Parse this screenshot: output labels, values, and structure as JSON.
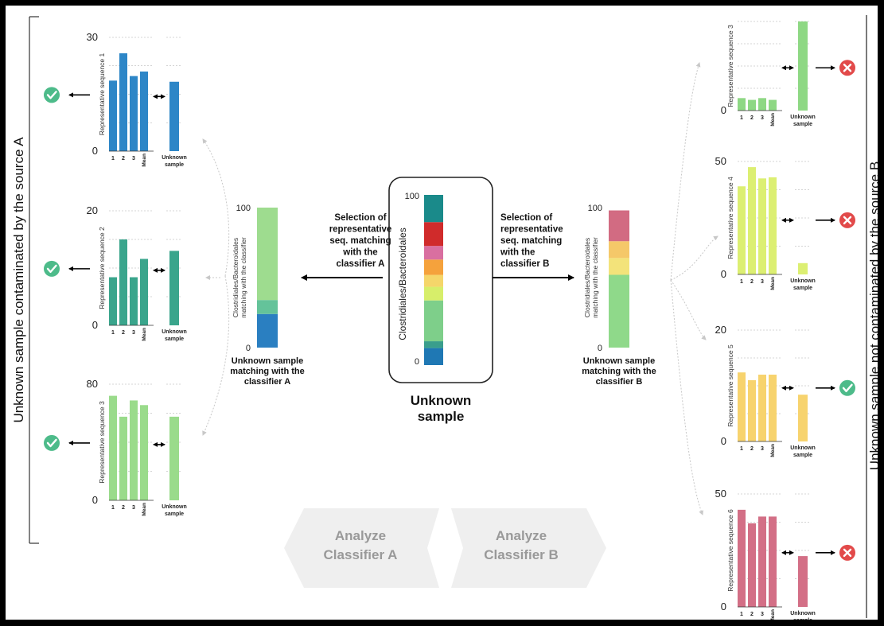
{
  "left_side_label": "Unknown sample contaminated by the source A",
  "right_side_label": "Unknown sample not contaminated by the source B",
  "center": {
    "axis_label": "Clostridiales/Bacteroidales",
    "ticks": [
      "100",
      "0"
    ],
    "caption_line1": "Unknown",
    "caption_line2": "sample",
    "composition": [
      {
        "color": "#1f78b4",
        "pct": 10
      },
      {
        "color": "#3a9e8c",
        "pct": 4
      },
      {
        "color": "#7ecf8a",
        "pct": 24
      },
      {
        "color": "#d7ee6a",
        "pct": 8
      },
      {
        "color": "#f5d66a",
        "pct": 7
      },
      {
        "color": "#f5a23c",
        "pct": 9
      },
      {
        "color": "#d96fa0",
        "pct": 8
      },
      {
        "color": "#d02b2b",
        "pct": 14
      },
      {
        "color": "#1a8a8a",
        "pct": 16
      }
    ]
  },
  "left_match": {
    "axis_label_1": "Clostridiales/Bacteroidales",
    "axis_label_2": "matching with the classifier",
    "ticks": [
      "100",
      "0"
    ],
    "caption": [
      "Unknown sample",
      "matching with the",
      "classifier A"
    ],
    "segments": [
      {
        "color": "#2a7fc1",
        "pct": 24
      },
      {
        "color": "#64c39a",
        "pct": 10
      },
      {
        "color": "#9edc8f",
        "pct": 66
      }
    ]
  },
  "right_match": {
    "axis_label_1": "Clostridiales/Bacteroidales",
    "axis_label_2": "matching with the classifier",
    "ticks": [
      "100",
      "0"
    ],
    "caption": [
      "Unknown sample",
      "matching with the",
      "classifier B"
    ],
    "segments": [
      {
        "color": "#8fd98a",
        "pct": 52
      },
      {
        "color": "#f3e37a",
        "pct": 12
      },
      {
        "color": "#f5c869",
        "pct": 12
      },
      {
        "color": "#d26b82",
        "pct": 22
      }
    ]
  },
  "arrow_left_text": [
    "Selection of",
    "representative",
    "seq. matching",
    "with the",
    "classifier A"
  ],
  "arrow_right_text": [
    "Selection of",
    "representative",
    "seq. matching",
    "with the",
    "classifier B"
  ],
  "bottom_left_text": [
    "Analyze",
    "Classifier A"
  ],
  "bottom_right_text": [
    "Analyze",
    "Classifier B"
  ],
  "x_categories": [
    "1",
    "2",
    "3",
    "Mean"
  ],
  "unknown_label": [
    "Unknown",
    "sample"
  ],
  "panels_left": [
    {
      "ylabel": "Representative sequence 1",
      "ymax": "30",
      "ymin": "0",
      "values": [
        0.62,
        0.86,
        0.66,
        0.7,
        0.61
      ],
      "color": "#2d86c7",
      "status": "ok"
    },
    {
      "ylabel": "Representative sequence 2",
      "ymax": "20",
      "ymin": "0",
      "values": [
        0.42,
        0.75,
        0.42,
        0.58,
        0.65
      ],
      "color": "#3aa58c",
      "status": "ok"
    },
    {
      "ylabel": "Representative sequence 3",
      "ymax": "80",
      "ymin": "0",
      "values": [
        0.9,
        0.72,
        0.86,
        0.82,
        0.72
      ],
      "color": "#9adb8b",
      "status": "ok"
    }
  ],
  "panels_right": [
    {
      "ylabel": "Representative sequence 3",
      "ymax": "",
      "ymin": "0",
      "values": [
        0.14,
        0.12,
        0.14,
        0.12,
        1.0
      ],
      "color": "#8ed884",
      "status": "fail",
      "mean_short": false
    },
    {
      "ylabel": "Representative sequence 4",
      "ymax": "50",
      "ymin": "0",
      "values": [
        0.78,
        0.95,
        0.85,
        0.86,
        0.1
      ],
      "color": "#dcef72",
      "status": "fail",
      "mean_short": false
    },
    {
      "ylabel": "Representative sequence 5",
      "ymax": "20",
      "ymin": "0",
      "values": [
        0.62,
        0.55,
        0.6,
        0.6,
        0.42
      ],
      "color": "#f7d36e",
      "status": "ok",
      "mean_short": false
    },
    {
      "ylabel": "Representative sequence 6",
      "ymax": "50",
      "ymin": "0",
      "values": [
        0.86,
        0.74,
        0.8,
        0.8,
        0.45
      ],
      "color": "#d36f86",
      "status": "fail",
      "mean_short": true
    }
  ]
}
